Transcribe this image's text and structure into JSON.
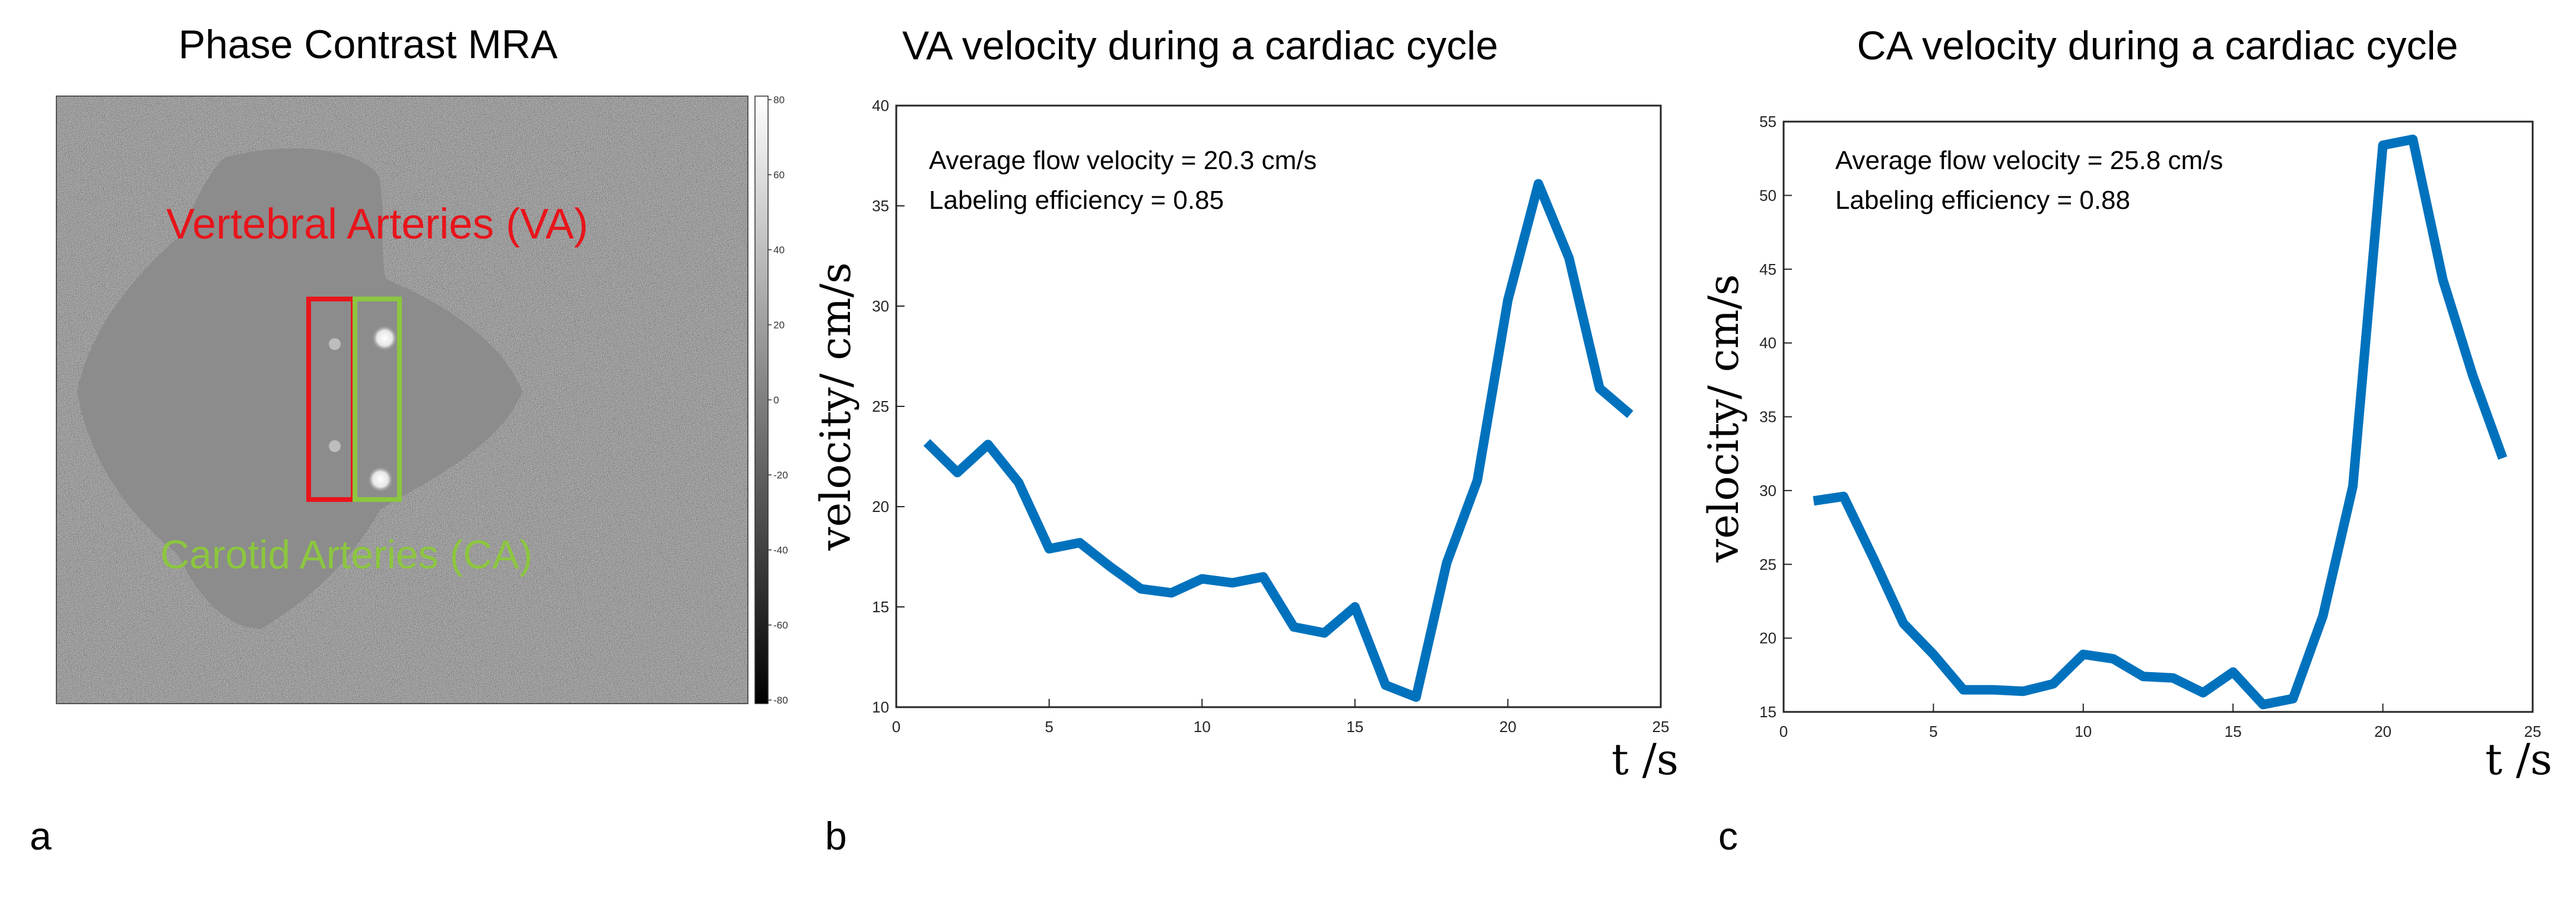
{
  "figure": {
    "panel_a": {
      "title": "Phase Contrast MRA",
      "panel_letter": "a",
      "va_label": "Vertebral Arteries (VA)",
      "ca_label": "Carotid Arteries (CA)",
      "colorbar_ticks": [
        "80",
        "60",
        "40",
        "20",
        "0",
        "-20",
        "-40",
        "-60",
        "-80"
      ],
      "colors": {
        "va_box": "#e8141b",
        "ca_box": "#8cc63f",
        "va_text": "#e8141b",
        "ca_text": "#8cc63f"
      }
    },
    "panel_b": {
      "title": "VA velocity during a cardiac cycle",
      "panel_letter": "b",
      "annotation_1": "Average flow velocity = 20.3 cm/s",
      "annotation_2": "Labeling efficiency = 0.85",
      "ylabel": "velocity/ cm/s",
      "xlabel": "t /s"
    },
    "panel_c": {
      "title": "CA velocity during a cardiac cycle",
      "panel_letter": "c",
      "annotation_1": "Average flow velocity = 25.8 cm/s",
      "annotation_2": "Labeling efficiency = 0.88",
      "ylabel": "velocity/ cm/s",
      "xlabel": "t /s"
    }
  },
  "chart_data": [
    {
      "type": "line",
      "title": "VA velocity during a cardiac cycle",
      "xlabel": "t /s",
      "ylabel": "velocity/ cm/s",
      "xlim": [
        0,
        25
      ],
      "ylim": [
        10,
        40
      ],
      "xticks": [
        0,
        5,
        10,
        15,
        20,
        25
      ],
      "yticks": [
        10,
        15,
        20,
        25,
        30,
        35,
        40
      ],
      "grid": false,
      "line_color": "#0072bd",
      "x": [
        1,
        2,
        3,
        4,
        5,
        6,
        7,
        8,
        9,
        10,
        11,
        12,
        13,
        14,
        15,
        16,
        17,
        18,
        19,
        20,
        21,
        22,
        23,
        24
      ],
      "series": [
        {
          "values": [
            23.2,
            21.7,
            23.1,
            21.2,
            17.9,
            18.2,
            17.0,
            15.9,
            15.7,
            16.4,
            16.2,
            16.5,
            14.0,
            13.7,
            15.0,
            11.1,
            10.5,
            17.2,
            21.3,
            30.3,
            36.1,
            32.4,
            25.9,
            24.6
          ]
        }
      ]
    },
    {
      "type": "line",
      "title": "CA velocity during a cardiac cycle",
      "xlabel": "t /s",
      "ylabel": "velocity/ cm/s",
      "xlim": [
        0,
        25
      ],
      "ylim": [
        15,
        55
      ],
      "xticks": [
        0,
        5,
        10,
        15,
        20,
        25
      ],
      "yticks": [
        15,
        20,
        25,
        30,
        35,
        40,
        45,
        50,
        55
      ],
      "grid": false,
      "line_color": "#0072bd",
      "x": [
        1,
        2,
        3,
        4,
        5,
        6,
        7,
        8,
        9,
        10,
        11,
        12,
        13,
        14,
        15,
        16,
        17,
        18,
        19,
        20,
        21,
        22,
        23,
        24
      ],
      "series": [
        {
          "values": [
            29.3,
            29.6,
            25.4,
            21.0,
            18.9,
            16.5,
            16.5,
            16.4,
            16.9,
            18.9,
            18.6,
            17.4,
            17.3,
            16.3,
            17.7,
            15.5,
            15.9,
            21.5,
            30.3,
            53.4,
            53.8,
            44.3,
            37.8,
            32.2
          ]
        }
      ]
    }
  ]
}
